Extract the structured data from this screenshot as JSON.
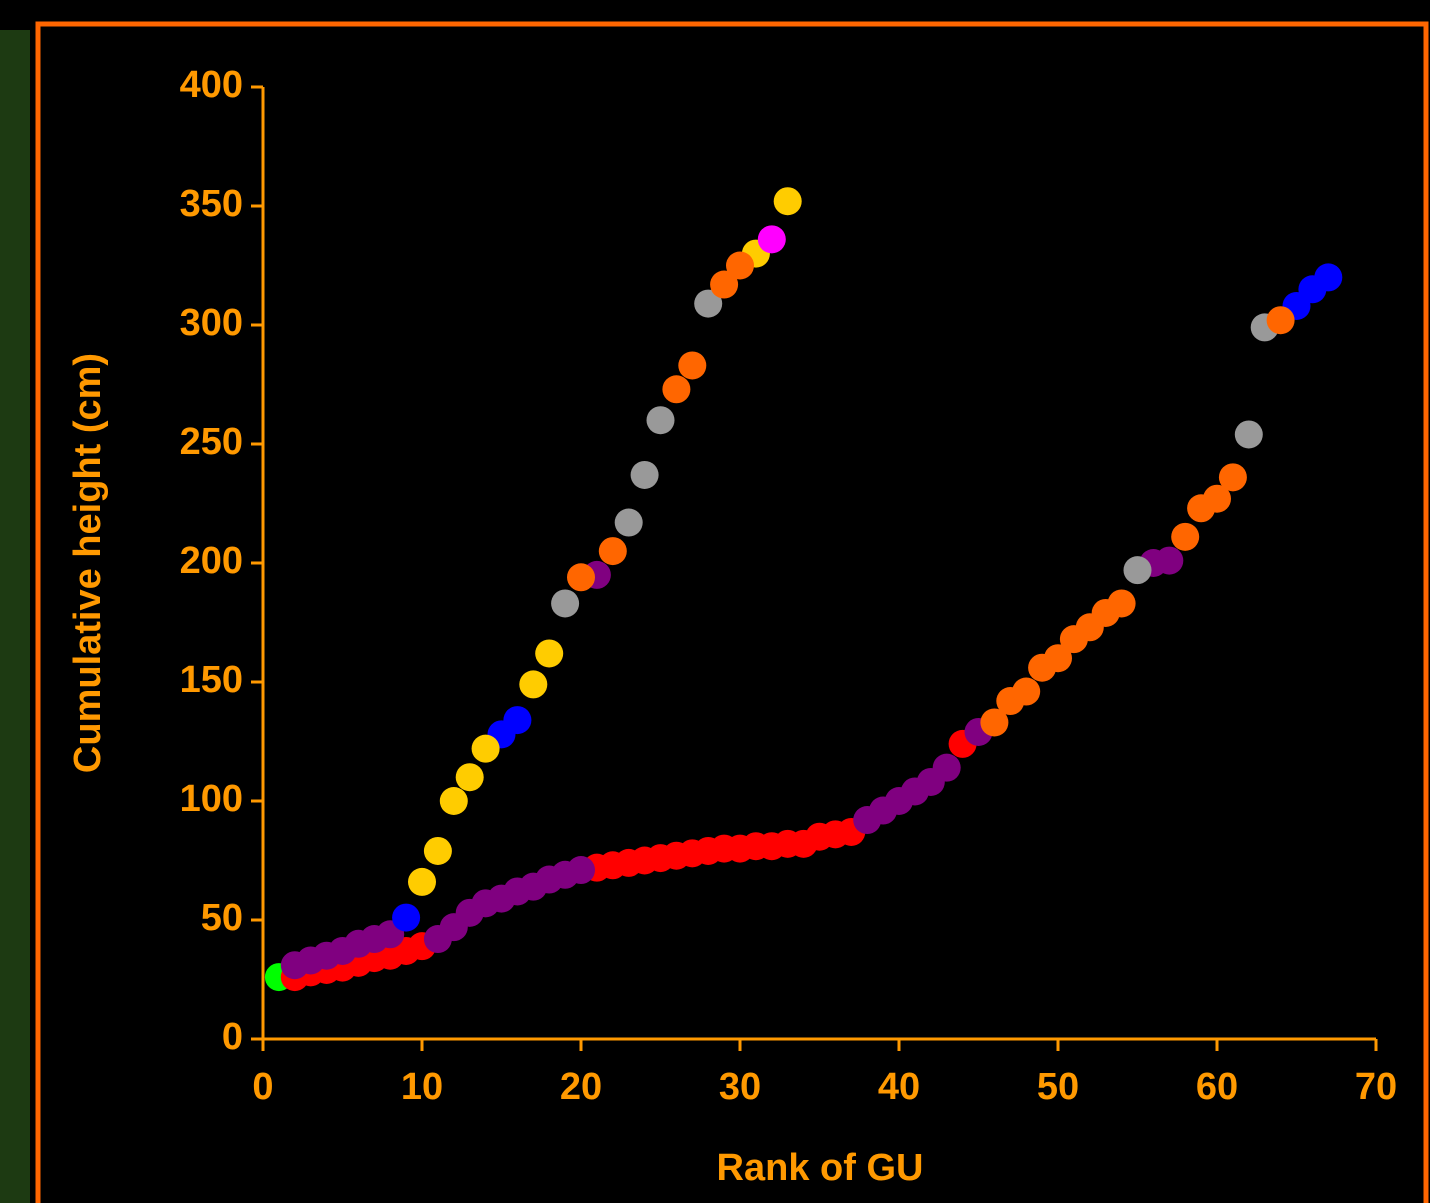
{
  "chart_data": {
    "type": "scatter",
    "xlabel": "Rank of GU",
    "ylabel": "Cumulative height (cm)",
    "xlim": [
      0,
      70
    ],
    "ylim": [
      0,
      400
    ],
    "xticks": [
      0,
      10,
      20,
      30,
      40,
      50,
      60,
      70
    ],
    "yticks": [
      0,
      50,
      100,
      150,
      200,
      250,
      300,
      350,
      400
    ],
    "axis_color": "#ff9900",
    "series": [
      {
        "color": "#00ff00",
        "x": [
          1
        ],
        "values": [
          26
        ]
      },
      {
        "color": "#ff0000",
        "x": [
          2,
          3,
          4,
          5,
          6,
          7,
          8,
          9,
          10,
          21,
          22,
          23,
          24,
          25,
          26,
          27,
          28,
          29,
          30,
          31,
          32,
          33,
          34,
          35,
          36,
          37,
          44
        ],
        "values": [
          26,
          28,
          29,
          30,
          32,
          34,
          35,
          37,
          39,
          72,
          73,
          74,
          75,
          76,
          77,
          78,
          79,
          80,
          80,
          81,
          81,
          82,
          82,
          85,
          86,
          87,
          124
        ]
      },
      {
        "color": "#800080",
        "x": [
          2,
          3,
          4,
          5,
          6,
          7,
          8,
          11,
          12,
          13,
          14,
          15,
          16,
          17,
          18,
          19,
          20,
          21,
          38,
          39,
          40,
          41,
          42,
          43,
          45,
          56,
          57
        ],
        "values": [
          31,
          33,
          35,
          37,
          40,
          42,
          44,
          42,
          47,
          53,
          57,
          59,
          62,
          64,
          67,
          69,
          71,
          195,
          92,
          96,
          100,
          104,
          108,
          114,
          129,
          200,
          201
        ]
      },
      {
        "color": "#0000ff",
        "x": [
          9,
          15,
          16,
          65,
          66,
          67
        ],
        "values": [
          51,
          128,
          134,
          308,
          315,
          320
        ]
      },
      {
        "color": "#ffcc00",
        "x": [
          10,
          11,
          12,
          13,
          14,
          17,
          18,
          31,
          33
        ],
        "values": [
          66,
          79,
          100,
          110,
          122,
          149,
          162,
          330,
          352
        ]
      },
      {
        "color": "#999999",
        "x": [
          19,
          23,
          24,
          25,
          28,
          55,
          62,
          63
        ],
        "values": [
          183,
          217,
          237,
          260,
          309,
          197,
          254,
          299
        ]
      },
      {
        "color": "#ff6600",
        "x": [
          20,
          22,
          26,
          27,
          29,
          30,
          46,
          47,
          48,
          49,
          50,
          51,
          52,
          53,
          54,
          58,
          59,
          60,
          61,
          64
        ],
        "values": [
          194,
          205,
          273,
          283,
          317,
          325,
          133,
          142,
          146,
          156,
          160,
          168,
          173,
          179,
          183,
          211,
          223,
          227,
          236,
          302
        ]
      },
      {
        "color": "#ff00ff",
        "x": [
          32
        ],
        "values": [
          336
        ]
      }
    ]
  }
}
